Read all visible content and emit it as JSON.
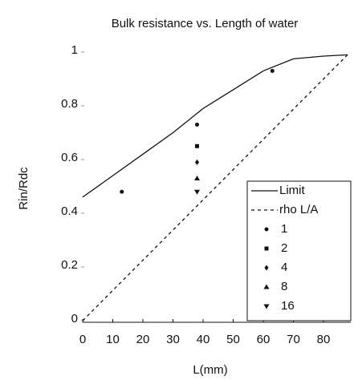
{
  "chart_data": {
    "type": "line",
    "title": "Bulk resistance vs. Length of water",
    "x_label": "L(mm)",
    "y_label": "Rin/Rdc",
    "xlim": [
      0,
      88
    ],
    "ylim": [
      0,
      1
    ],
    "xticks": [
      0,
      10,
      20,
      30,
      40,
      50,
      60,
      70,
      80
    ],
    "yticks": [
      0,
      0.2,
      0.4,
      0.6,
      0.8,
      1
    ],
    "legend": "lower right",
    "series": [
      {
        "name": "Limit",
        "color": "#111111",
        "line_style": "solid",
        "x": [
          0,
          10,
          20,
          30,
          40,
          50,
          60,
          70,
          80,
          88
        ],
        "values": [
          0.46,
          0.54,
          0.62,
          0.7,
          0.79,
          0.86,
          0.93,
          0.975,
          0.985,
          0.99
        ]
      },
      {
        "name": "rho L/A",
        "color": "#111111",
        "line_style": "dashed",
        "x": [
          0,
          88
        ],
        "values": [
          0,
          0.99
        ]
      },
      {
        "name": "1",
        "color": "#111111",
        "marker": "circle",
        "x": [
          13,
          38,
          63
        ],
        "values": [
          0.48,
          0.73,
          0.93
        ]
      },
      {
        "name": "2",
        "color": "#111111",
        "marker": "square",
        "x": [
          38
        ],
        "values": [
          0.65
        ]
      },
      {
        "name": "4",
        "color": "#111111",
        "marker": "diamond",
        "x": [
          38
        ],
        "values": [
          0.59
        ]
      },
      {
        "name": "8",
        "color": "#111111",
        "marker": "triangle-up",
        "x": [
          38
        ],
        "values": [
          0.53
        ]
      },
      {
        "name": "16",
        "color": "#111111",
        "marker": "triangle-down",
        "x": [
          38
        ],
        "values": [
          0.48
        ]
      }
    ]
  }
}
